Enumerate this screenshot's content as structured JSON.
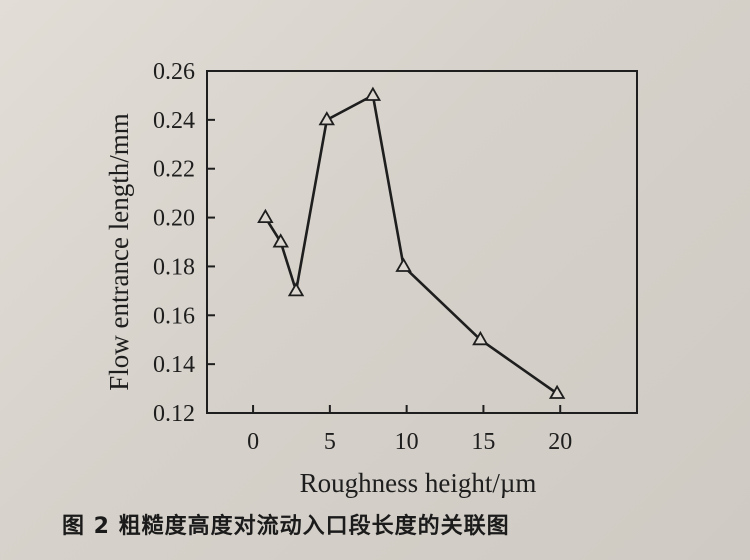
{
  "chart_data": {
    "type": "line",
    "title": "",
    "xlabel": "Roughness height/µm",
    "ylabel": "Flow entrance length/mm",
    "xlim": [
      -3,
      25
    ],
    "ylim": [
      0.12,
      0.26
    ],
    "x_ticks": [
      0,
      5,
      10,
      15,
      20
    ],
    "x_tick_labels": [
      "0",
      "5",
      "10",
      "15",
      "20"
    ],
    "y_ticks": [
      0.12,
      0.14,
      0.16,
      0.18,
      0.2,
      0.22,
      0.24,
      0.26
    ],
    "y_tick_labels": [
      "0.12",
      "0.14",
      "0.16",
      "0.18",
      "0.20",
      "0.22",
      "0.24",
      "0.26"
    ],
    "grid": false,
    "marker": "triangle-open",
    "series": [
      {
        "x": [
          0.8,
          1.8,
          2.8,
          4.8,
          7.8,
          9.8,
          14.8,
          19.8
        ],
        "values": [
          0.2,
          0.19,
          0.17,
          0.24,
          0.25,
          0.18,
          0.15,
          0.128
        ]
      }
    ]
  },
  "caption": "图 2  粗糙度高度对流动入口段长度的关联图",
  "colors": {
    "ink": "#1e1e1e",
    "paper": "#dcd7d0"
  }
}
